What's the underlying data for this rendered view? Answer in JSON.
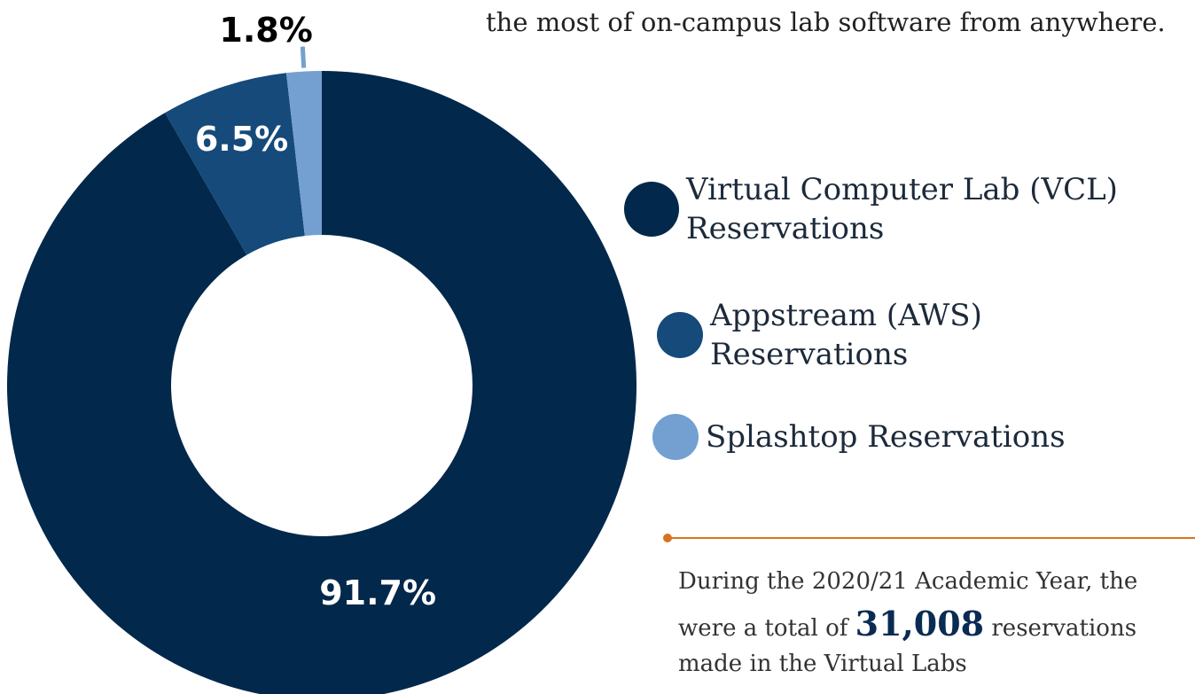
{
  "chart_data": {
    "type": "donut",
    "subtitle": "the most of on-campus lab software from anywhere.",
    "categories": [
      "Virtual Computer Lab (VCL) Reservations",
      "Appstream (AWS) Reservations",
      "Splashtop Reservations"
    ],
    "values": [
      91.7,
      6.5,
      1.8
    ],
    "value_labels": [
      "91.7%",
      "6.5%",
      "1.8%"
    ],
    "colors": [
      "#02284b",
      "#154a7a",
      "#73a0d0"
    ],
    "note": {
      "before": "During the 2020/21 Academic Year, the were a total of",
      "highlight": "31,008",
      "after": "reservations made in the Virtual Labs"
    }
  }
}
